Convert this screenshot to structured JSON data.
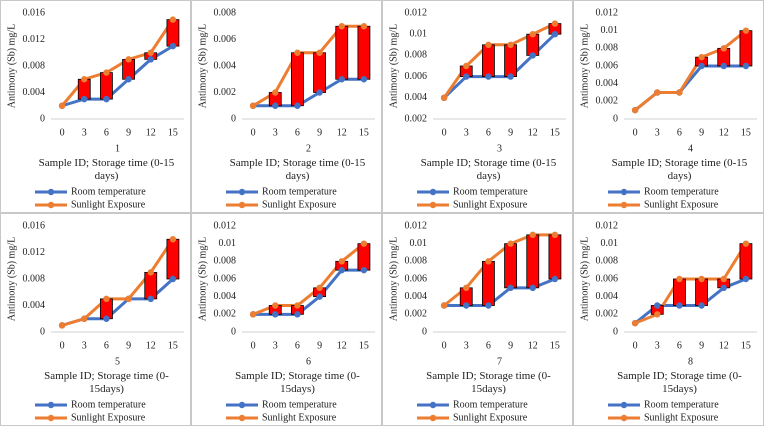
{
  "chart_data": [
    {
      "type": "line",
      "title": "1",
      "x_label": "Sample ID; Storage time (0-15 days)",
      "y_label": "Antimony (Sb) mg/L",
      "categories": [
        "0",
        "3",
        "6",
        "9",
        "12",
        "15"
      ],
      "series": [
        {
          "name": "Room temperature",
          "color": "#4472c4",
          "values": [
            0.002,
            0.003,
            0.003,
            0.006,
            0.009,
            0.011
          ]
        },
        {
          "name": "Sunlight Exposure",
          "color": "#ed7d31",
          "values": [
            0.002,
            0.006,
            0.007,
            0.009,
            0.01,
            0.015
          ]
        }
      ],
      "ylim": [
        0,
        0.016
      ],
      "yticks": [
        0,
        0.004,
        0.008,
        0.012,
        0.016
      ],
      "hi_lo_bars": true,
      "hi_lo_color": "#ff0000"
    },
    {
      "type": "line",
      "title": "2",
      "x_label": "Sample ID; Storage time (0-15 days)",
      "y_label": "Antimony (Sb) mg/L",
      "categories": [
        "0",
        "3",
        "6",
        "9",
        "12",
        "15"
      ],
      "series": [
        {
          "name": "Room temperature",
          "color": "#4472c4",
          "values": [
            0.001,
            0.001,
            0.001,
            0.002,
            0.003,
            0.003
          ]
        },
        {
          "name": "Sunlight Exposure",
          "color": "#ed7d31",
          "values": [
            0.001,
            0.002,
            0.005,
            0.005,
            0.007,
            0.007
          ]
        }
      ],
      "ylim": [
        0,
        0.008
      ],
      "yticks": [
        0,
        0.002,
        0.004,
        0.006,
        0.008
      ],
      "hi_lo_bars": true,
      "hi_lo_color": "#ff0000"
    },
    {
      "type": "line",
      "title": "3",
      "x_label": "Sample ID; Storage time (0-15 days)",
      "y_label": "Antimony (Sb) mg/L",
      "categories": [
        "0",
        "3",
        "6",
        "9",
        "12",
        "15"
      ],
      "series": [
        {
          "name": "Room temperature",
          "color": "#4472c4",
          "values": [
            0.004,
            0.006,
            0.006,
            0.006,
            0.008,
            0.01
          ]
        },
        {
          "name": "Sunlight Exposure",
          "color": "#ed7d31",
          "values": [
            0.004,
            0.007,
            0.009,
            0.009,
            0.01,
            0.011
          ]
        }
      ],
      "ylim": [
        0.002,
        0.012
      ],
      "yticks": [
        0.002,
        0.004,
        0.006,
        0.008,
        0.01,
        0.012
      ],
      "hi_lo_bars": true,
      "hi_lo_color": "#ff0000"
    },
    {
      "type": "line",
      "title": "4",
      "x_label": "Sample ID; Storage time (0-15 days)",
      "y_label": "Antimony (Sb) mg/L",
      "categories": [
        "0",
        "3",
        "6",
        "9",
        "12",
        "15"
      ],
      "series": [
        {
          "name": "Room temperature",
          "color": "#4472c4",
          "values": [
            0.001,
            0.003,
            0.003,
            0.006,
            0.006,
            0.006
          ]
        },
        {
          "name": "Sunlight Exposure",
          "color": "#ed7d31",
          "values": [
            0.001,
            0.003,
            0.003,
            0.007,
            0.008,
            0.01
          ]
        }
      ],
      "ylim": [
        0,
        0.012
      ],
      "yticks": [
        0,
        0.002,
        0.004,
        0.006,
        0.008,
        0.01,
        0.012
      ],
      "hi_lo_bars": true,
      "hi_lo_color": "#ff0000"
    },
    {
      "type": "line",
      "title": "5",
      "x_label": "Sample ID; Storage time (0-15days)",
      "y_label": "Antimony (Sb) mg/L",
      "categories": [
        "0",
        "3",
        "6",
        "9",
        "12",
        "15"
      ],
      "series": [
        {
          "name": "Room temperature",
          "color": "#4472c4",
          "values": [
            0.001,
            0.002,
            0.002,
            0.005,
            0.005,
            0.008
          ]
        },
        {
          "name": "Sunlight Exposure",
          "color": "#ed7d31",
          "values": [
            0.001,
            0.002,
            0.005,
            0.005,
            0.009,
            0.014
          ]
        }
      ],
      "ylim": [
        0,
        0.016
      ],
      "yticks": [
        0,
        0.004,
        0.008,
        0.012,
        0.016
      ],
      "hi_lo_bars": true,
      "hi_lo_color": "#ff0000"
    },
    {
      "type": "line",
      "title": "6",
      "x_label": "Sample ID; Storage time (0-15days)",
      "y_label": "Antimony (Sb) mg/L",
      "categories": [
        "0",
        "3",
        "6",
        "9",
        "12",
        "15"
      ],
      "series": [
        {
          "name": "Room temperature",
          "color": "#4472c4",
          "values": [
            0.002,
            0.002,
            0.002,
            0.004,
            0.007,
            0.007
          ]
        },
        {
          "name": "Sunlight Exposure",
          "color": "#ed7d31",
          "values": [
            0.002,
            0.003,
            0.003,
            0.005,
            0.008,
            0.01
          ]
        }
      ],
      "ylim": [
        0,
        0.012
      ],
      "yticks": [
        0,
        0.002,
        0.004,
        0.006,
        0.008,
        0.01,
        0.012
      ],
      "hi_lo_bars": true,
      "hi_lo_color": "#ff0000"
    },
    {
      "type": "line",
      "title": "7",
      "x_label": "Sample ID; Storage time (0-15days)",
      "y_label": "Antimony (Sb) mg/L",
      "categories": [
        "0",
        "3",
        "6",
        "9",
        "12",
        "15"
      ],
      "series": [
        {
          "name": "Room temperature",
          "color": "#4472c4",
          "values": [
            0.003,
            0.003,
            0.003,
            0.005,
            0.005,
            0.006
          ]
        },
        {
          "name": "Sunlight Exposure",
          "color": "#ed7d31",
          "values": [
            0.003,
            0.005,
            0.008,
            0.01,
            0.011,
            0.011
          ]
        }
      ],
      "ylim": [
        0,
        0.012
      ],
      "yticks": [
        0,
        0.002,
        0.004,
        0.006,
        0.008,
        0.01,
        0.012
      ],
      "hi_lo_bars": true,
      "hi_lo_color": "#ff0000"
    },
    {
      "type": "line",
      "title": "8",
      "x_label": "Sample ID; Storage time (0-15days)",
      "y_label": "Antimony (Sb) mg/L",
      "categories": [
        "0",
        "3",
        "6",
        "9",
        "12",
        "15"
      ],
      "series": [
        {
          "name": "Room temperature",
          "color": "#4472c4",
          "values": [
            0.001,
            0.003,
            0.003,
            0.003,
            0.005,
            0.006
          ]
        },
        {
          "name": "Sunlight Exposure",
          "color": "#ed7d31",
          "values": [
            0.001,
            0.002,
            0.006,
            0.006,
            0.006,
            0.01
          ]
        }
      ],
      "ylim": [
        0,
        0.012
      ],
      "yticks": [
        0,
        0.002,
        0.004,
        0.006,
        0.008,
        0.01,
        0.012
      ],
      "hi_lo_bars": true,
      "hi_lo_color": "#ff0000"
    }
  ]
}
